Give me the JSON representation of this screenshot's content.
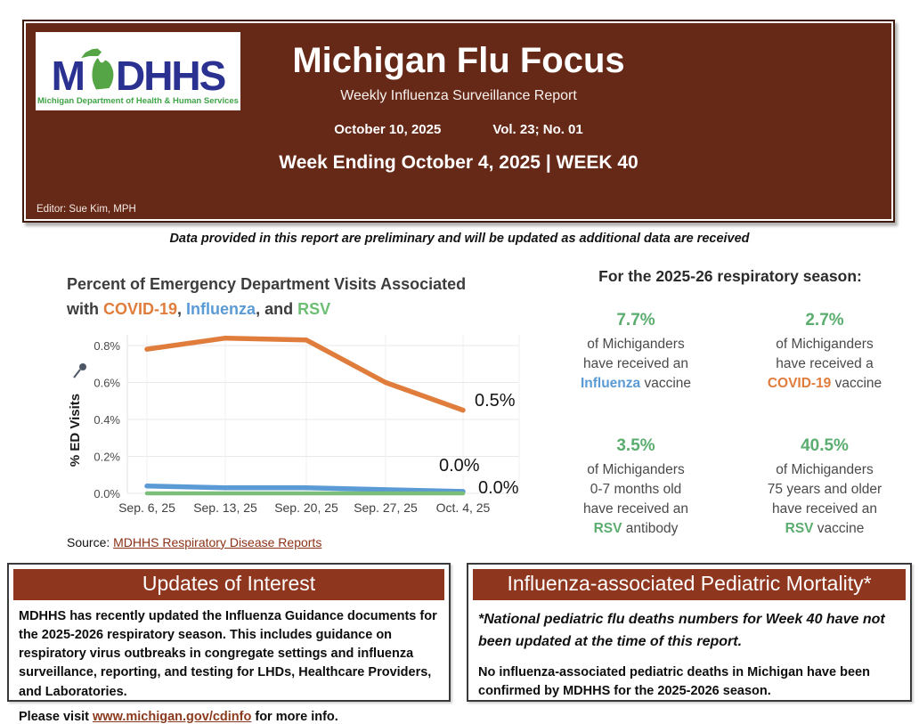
{
  "header": {
    "logo": {
      "m": "M",
      "dhhs": "DHHS",
      "caption": "Michigan Department of Health & Human Services"
    },
    "title": "Michigan Flu Focus",
    "subtitle": "Weekly Influenza Surveillance Report",
    "date": "October 10, 2025",
    "volume": "Vol. 23; No. 01",
    "week_line": "Week Ending October 4, 2025 | WEEK 40",
    "editor": "Editor: Sue Kim, MPH"
  },
  "disclaimer": "Data provided in this report are preliminary and will be updated as additional data are received",
  "chart_title_parts": {
    "line1": "Percent of Emergency Department Visits Associated",
    "with": "with ",
    "covid": "COVID-19",
    "sep1": ", ",
    "flu": "Influenza",
    "sep2": ", and ",
    "rsv": "RSV"
  },
  "chart_data": {
    "type": "line",
    "title": "Percent of Emergency Department Visits Associated with COVID-19, Influenza, and RSV",
    "x": [
      "Sep. 6, 25",
      "Sep. 13, 25",
      "Sep. 20, 25",
      "Sep. 27, 25",
      "Oct. 4, 25"
    ],
    "ylabel": "% ED Visits",
    "yticks": [
      "0.0%",
      "0.2%",
      "0.4%",
      "0.6%",
      "0.8%"
    ],
    "ylim": [
      0,
      0.9
    ],
    "grid": true,
    "legend_position": "in-title",
    "series": [
      {
        "name": "COVID-19",
        "color": "#e07d3c",
        "values": [
          0.78,
          0.84,
          0.83,
          0.6,
          0.45
        ],
        "end_label": "0.5%"
      },
      {
        "name": "Influenza",
        "color": "#5b9bd5",
        "values": [
          0.04,
          0.03,
          0.03,
          0.02,
          0.01
        ],
        "end_label": "0.0%"
      },
      {
        "name": "RSV",
        "color": "#7bbf7b",
        "values": [
          0.0,
          0.0,
          0.0,
          0.0,
          0.0
        ],
        "end_label": "0.0%"
      }
    ]
  },
  "source": {
    "label": "Source: ",
    "link": "MDHHS Respiratory Disease Reports"
  },
  "stats": {
    "heading": "For the 2025-26 respiratory season:",
    "items": [
      {
        "pct": "7.7%",
        "lines": [
          "of Michiganders",
          "have received an"
        ],
        "keyword": "Influenza",
        "keyword_color": "#5b9bd5",
        "tail": " vaccine"
      },
      {
        "pct": "2.7%",
        "lines": [
          "of Michiganders",
          "have received a"
        ],
        "keyword": "COVID-19",
        "keyword_color": "#e07d3c",
        "tail": " vaccine"
      },
      {
        "pct": "3.5%",
        "lines": [
          "of Michiganders",
          "0-7 months old",
          "have received an"
        ],
        "keyword": "RSV",
        "keyword_color": "#5bad6f",
        "tail": " antibody"
      },
      {
        "pct": "40.5%",
        "lines": [
          "of Michiganders",
          "75 years and older",
          "have received an"
        ],
        "keyword": "RSV",
        "keyword_color": "#5bad6f",
        "tail": " vaccine"
      }
    ]
  },
  "updates_box": {
    "title": "Updates of Interest",
    "body": "MDHHS has recently updated the Influenza Guidance documents for the 2025-2026 respiratory season. This includes guidance on respiratory virus outbreaks in congregate settings and influenza surveillance, reporting, and testing for LHDs, Healthcare Providers, and Laboratories.",
    "visit_prefix": "Please visit ",
    "visit_link": "www.michigan.gov/cdinfo",
    "visit_suffix": " for more info."
  },
  "mortality_box": {
    "title": "Influenza-associated Pediatric Mortality*",
    "note_italic": "*National pediatric flu deaths numbers for Week 40 have not been updated at the time of this report.",
    "body": "No influenza-associated pediatric deaths in Michigan have been confirmed by MDHHS for the 2025-2026 season."
  },
  "colors": {
    "header_bg": "#672917",
    "section_bar": "#8f361f",
    "covid": "#e07d3c",
    "influenza": "#5b9bd5",
    "rsv_line": "#7bbf7b",
    "stat_green": "#5bad6f",
    "link": "#8b3016",
    "logo_blue": "#2b3190",
    "logo_green": "#55a546"
  }
}
